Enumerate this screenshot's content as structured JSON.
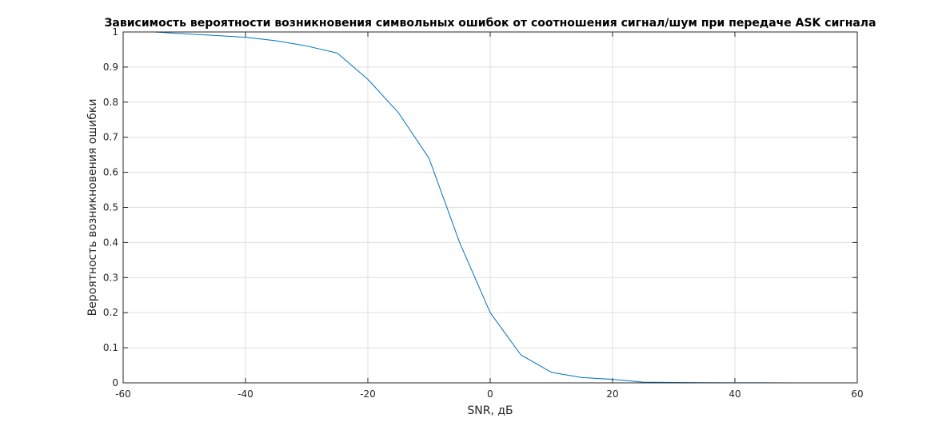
{
  "chart_data": {
    "type": "line",
    "title": "Зависимость вероятности возникновения символьных ошибок от соотношения сигнал/шум при передаче ASK сигнала",
    "xlabel": "SNR, дБ",
    "ylabel": "Вероятность возникновения ошибки",
    "xlim": [
      -60,
      60
    ],
    "ylim": [
      0,
      1
    ],
    "xticks": [
      "-60",
      "-40",
      "-20",
      "0",
      "20",
      "40",
      "60"
    ],
    "yticks": [
      "0",
      "0.1",
      "0.2",
      "0.3",
      "0.4",
      "0.5",
      "0.6",
      "0.7",
      "0.8",
      "0.9",
      "1"
    ],
    "grid": true,
    "series": [
      {
        "color": "#0072bd",
        "x": [
          -60,
          -55,
          -50,
          -45,
          -40,
          -35,
          -30,
          -25,
          -20,
          -15,
          -10,
          -5,
          0,
          5,
          10,
          15,
          20,
          25,
          30,
          35,
          40,
          45,
          50,
          55,
          60
        ],
        "y": [
          1.0,
          1.0,
          0.995,
          0.99,
          0.985,
          0.975,
          0.96,
          0.94,
          0.865,
          0.77,
          0.64,
          0.4,
          0.2,
          0.08,
          0.03,
          0.015,
          0.01,
          0.002,
          0.001,
          0.0005,
          0.0003,
          0.0002,
          0.0001,
          0.0001,
          0.0001
        ]
      }
    ]
  }
}
